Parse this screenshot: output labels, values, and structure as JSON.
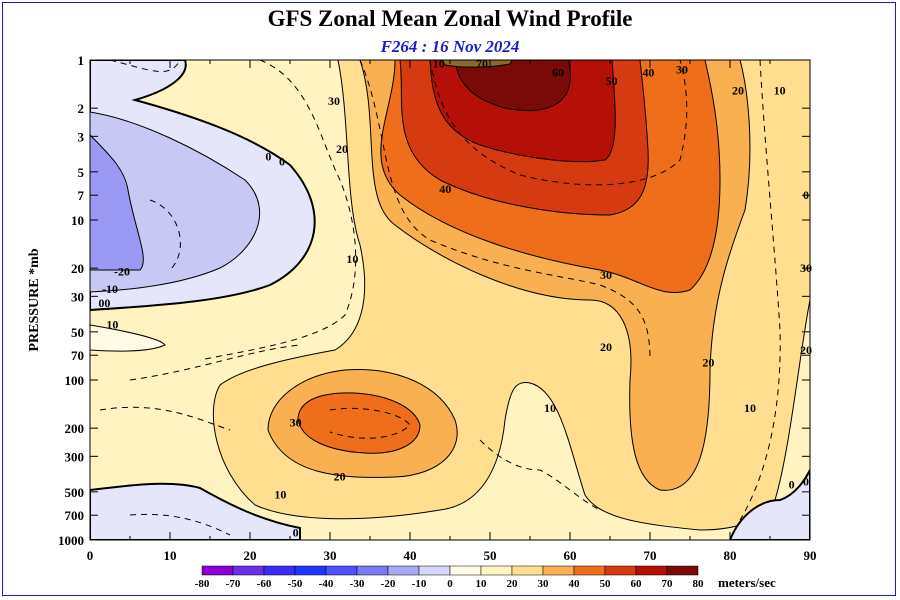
{
  "chart_data": {
    "type": "heatmap",
    "title": "GFS Zonal Mean Zonal Wind Profile",
    "subtitle": "F264 : 16 Nov 2024",
    "ylabel": "PRESSURE *mb",
    "xlabel": "",
    "x_ticks": [
      "0",
      "10",
      "20",
      "30",
      "40",
      "50",
      "60",
      "70",
      "80",
      "90"
    ],
    "y_ticks": [
      "1",
      "2",
      "3",
      "5",
      "7",
      "10",
      "20",
      "30",
      "50",
      "70",
      "100",
      "200",
      "300",
      "500",
      "700",
      "1000"
    ],
    "xlim": [
      0,
      90
    ],
    "ylim": [
      1000,
      1
    ],
    "y_scale": "log",
    "legend": {
      "unit": "meters/sec",
      "levels": [
        "-80",
        "-70",
        "-60",
        "-50",
        "-40",
        "-30",
        "-20",
        "-10",
        "0",
        "10",
        "20",
        "30",
        "40",
        "50",
        "60",
        "70",
        "80"
      ],
      "colors": [
        "#8a00d4",
        "#6a2ee8",
        "#3a2cf5",
        "#2233ff",
        "#5050ff",
        "#7a7af5",
        "#a8a8f5",
        "#d6d6fa",
        "#fffbe6",
        "#fff3c2",
        "#ffde90",
        "#f9b050",
        "#ef6e1a",
        "#d63a10",
        "#b41008",
        "#7a0a08",
        "#8a6a2a"
      ]
    },
    "contour_labels": [
      {
        "text": "10",
        "x": 43.6,
        "p": 1.05
      },
      {
        "text": "70",
        "x": 49,
        "p": 1.05
      },
      {
        "text": "60",
        "x": 58.5,
        "p": 1.2
      },
      {
        "text": "50",
        "x": 65.2,
        "p": 1.35
      },
      {
        "text": "40",
        "x": 69.8,
        "p": 1.2
      },
      {
        "text": "30",
        "x": 74,
        "p": 1.15
      },
      {
        "text": "20",
        "x": 81,
        "p": 1.55
      },
      {
        "text": "10",
        "x": 86.2,
        "p": 1.55
      },
      {
        "text": "30",
        "x": 30.5,
        "p": 1.8
      },
      {
        "text": "20",
        "x": 31.5,
        "p": 3.6
      },
      {
        "text": "0",
        "x": 22.3,
        "p": 4.0
      },
      {
        "text": "0",
        "x": 24,
        "p": 4.3
      },
      {
        "text": "40",
        "x": 44.4,
        "p": 6.4
      },
      {
        "text": "10",
        "x": 32.8,
        "p": 17.5
      },
      {
        "text": "30",
        "x": 64.5,
        "p": 22
      },
      {
        "text": "20",
        "x": 64.5,
        "p": 62
      },
      {
        "text": "20",
        "x": 77.3,
        "p": 78
      },
      {
        "text": "10",
        "x": 57.5,
        "p": 150
      },
      {
        "text": "10",
        "x": 82.5,
        "p": 150
      },
      {
        "text": "30",
        "x": 25.7,
        "p": 185
      },
      {
        "text": "20",
        "x": 31.2,
        "p": 400
      },
      {
        "text": "10",
        "x": 23.8,
        "p": 520
      },
      {
        "text": "0",
        "x": 25.7,
        "p": 900
      },
      {
        "text": "0",
        "x": 87.7,
        "p": 450
      },
      {
        "text": "-20",
        "x": 4,
        "p": 21
      },
      {
        "text": "-10",
        "x": 2.5,
        "p": 27
      },
      {
        "text": "00",
        "x": 1.8,
        "p": 33
      },
      {
        "text": "10",
        "x": 2.8,
        "p": 45
      },
      {
        "text": "0",
        "x": 89.5,
        "p": 7
      },
      {
        "text": "30",
        "x": 89.5,
        "p": 20
      },
      {
        "text": "20",
        "x": 89.5,
        "p": 65
      },
      {
        "text": "0",
        "x": 89.5,
        "p": 430
      }
    ]
  }
}
